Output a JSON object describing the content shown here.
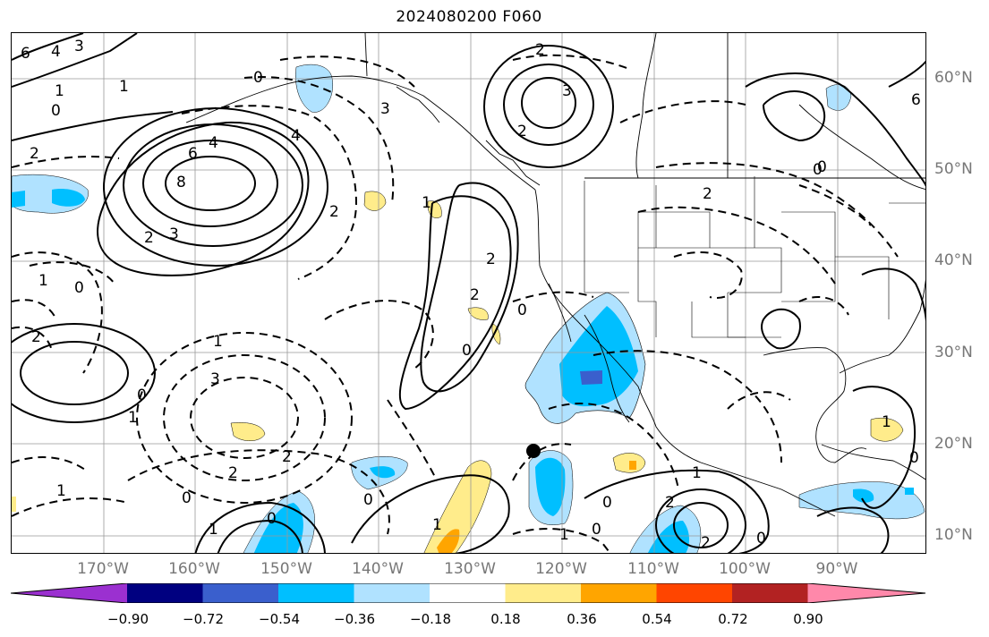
{
  "title": "2024080200 F060",
  "lat_labels": [
    "60°N",
    "50°N",
    "40°N",
    "30°N",
    "20°N",
    "10°N"
  ],
  "lon_labels": [
    "170°W",
    "160°W",
    "150°W",
    "140°W",
    "130°W",
    "120°W",
    "110°W",
    "100°W",
    "90°W"
  ],
  "colorbar": {
    "colors": [
      "#9b30d0",
      "#000080",
      "#3a5fcd",
      "#00bfff",
      "#b0e2ff",
      "#ffffff",
      "#ffec8b",
      "#ffa500",
      "#ff4500",
      "#b22222",
      "#ff88aa"
    ],
    "ticks": [
      "−0.90",
      "−0.72",
      "−0.54",
      "−0.36",
      "−0.18",
      "0.18",
      "0.36",
      "0.54",
      "0.72",
      "0.90"
    ]
  },
  "contour_labels": [
    "6",
    "4",
    "3",
    "0",
    "1",
    "2",
    "6",
    "4",
    "8",
    "3",
    "2",
    "0",
    "1",
    "3",
    "0",
    "1",
    "2",
    "6",
    "3",
    "4",
    "2",
    "2",
    "2",
    "1",
    "0",
    "2",
    "0",
    "2",
    "2",
    "0",
    "1",
    "1",
    "3",
    "0",
    "2",
    "1",
    "0",
    "2",
    "1",
    "0",
    "0",
    "2",
    "1",
    "0",
    "0",
    "1",
    "2",
    "0",
    "0",
    "1",
    "0",
    "1"
  ],
  "storm_marker": "black-dot"
}
